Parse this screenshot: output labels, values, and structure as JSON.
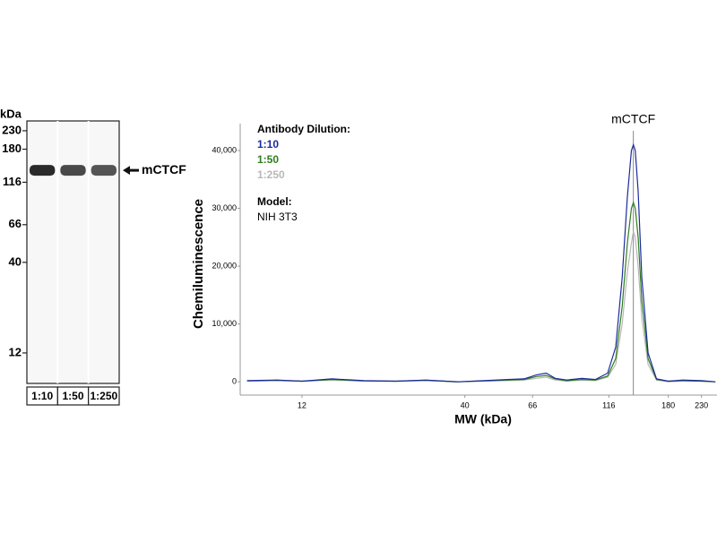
{
  "chart_data": [
    {
      "type": "blot",
      "y_label": "kDa",
      "log_scale": true,
      "ylim": [
        262,
        8
      ],
      "yticks": [
        230,
        180,
        116,
        66,
        40,
        12
      ],
      "categories": [
        "1:10",
        "1:50",
        "1:250"
      ],
      "band_mw": 136,
      "band_label": "mCTCF",
      "color": "#2a2a2a"
    },
    {
      "type": "line",
      "y_label": "Chemiluminescence",
      "x_label": "MW (kDa)",
      "legend_title": "Antibody Dilution:",
      "model_label": "Model:",
      "model": "NIH 3T3",
      "peak": {
        "label": "mCTCF",
        "x": 139
      },
      "log_x": true,
      "xlim": [
        7.6,
        258
      ],
      "xticks": [
        12,
        40,
        66,
        116,
        180,
        230
      ],
      "ylim": [
        -2300,
        46200
      ],
      "yticks": [
        0,
        {
          "value": 10000,
          "label": "10,000"
        },
        {
          "value": 20000,
          "label": "20,000"
        },
        {
          "value": 30000,
          "label": "30,000"
        },
        {
          "value": 40000,
          "label": "40,000"
        }
      ],
      "x": [
        8,
        10,
        12,
        15,
        19,
        24,
        30,
        38,
        46,
        55,
        62,
        68,
        73,
        78,
        85,
        95,
        105,
        115,
        122,
        128,
        133,
        137,
        139,
        141,
        144,
        148,
        155,
        165,
        180,
        200,
        230,
        255
      ],
      "series": [
        {
          "name": "1:10",
          "color": "#1c2a9c",
          "values": [
            200,
            300,
            100,
            500,
            200,
            100,
            300,
            0,
            200,
            400,
            500,
            1200,
            1500,
            600,
            300,
            600,
            400,
            1500,
            6000,
            18000,
            32000,
            40000,
            41000,
            40000,
            33000,
            18000,
            5000,
            500,
            100,
            300,
            200,
            0
          ]
        },
        {
          "name": "1:50",
          "color": "#2e7d1e",
          "values": [
            150,
            250,
            100,
            400,
            150,
            100,
            250,
            0,
            150,
            300,
            400,
            900,
            1100,
            500,
            200,
            400,
            300,
            1000,
            4000,
            13000,
            24000,
            30000,
            31000,
            30000,
            25000,
            14000,
            4000,
            400,
            100,
            200,
            100,
            0
          ]
        },
        {
          "name": "1:250",
          "color": "#b8b8b8",
          "values": [
            100,
            200,
            100,
            300,
            100,
            100,
            200,
            0,
            100,
            200,
            300,
            600,
            800,
            300,
            100,
            300,
            200,
            800,
            3000,
            10000,
            19000,
            24000,
            26000,
            25000,
            20000,
            11000,
            3000,
            300,
            0,
            100,
            100,
            0
          ]
        }
      ]
    }
  ]
}
